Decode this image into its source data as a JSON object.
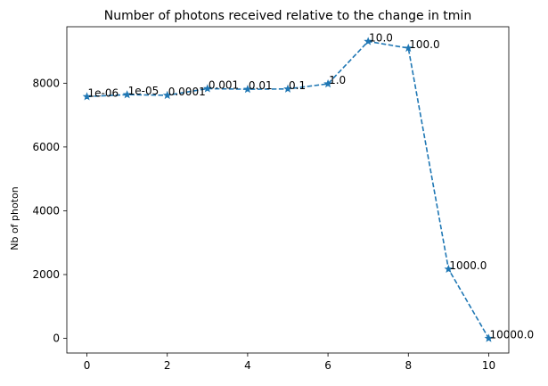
{
  "chart_data": {
    "type": "line",
    "title": "Number of photons received relative to the change in tmin",
    "xlabel": "",
    "ylabel": "Nb of photon",
    "x": [
      0,
      1,
      2,
      3,
      4,
      5,
      6,
      7,
      8,
      9,
      10
    ],
    "series": [
      {
        "values": [
          7580,
          7640,
          7620,
          7830,
          7810,
          7820,
          7980,
          9310,
          9100,
          2170,
          0
        ],
        "point_labels": [
          "1e-06",
          "1e-05",
          "0.0001",
          "0.001",
          "0.01",
          "0.1",
          "1.0",
          "10.0",
          "100.0",
          "1000.0",
          "10000.0"
        ],
        "color": "#1f77b4",
        "linestyle": "dashed",
        "marker": "star"
      }
    ],
    "xlim": [
      -0.5,
      10.5
    ],
    "ylim": [
      -460,
      9770
    ],
    "xticks": [
      0,
      2,
      4,
      6,
      8,
      10
    ],
    "yticks": [
      0,
      2000,
      4000,
      6000,
      8000
    ],
    "grid": false
  }
}
